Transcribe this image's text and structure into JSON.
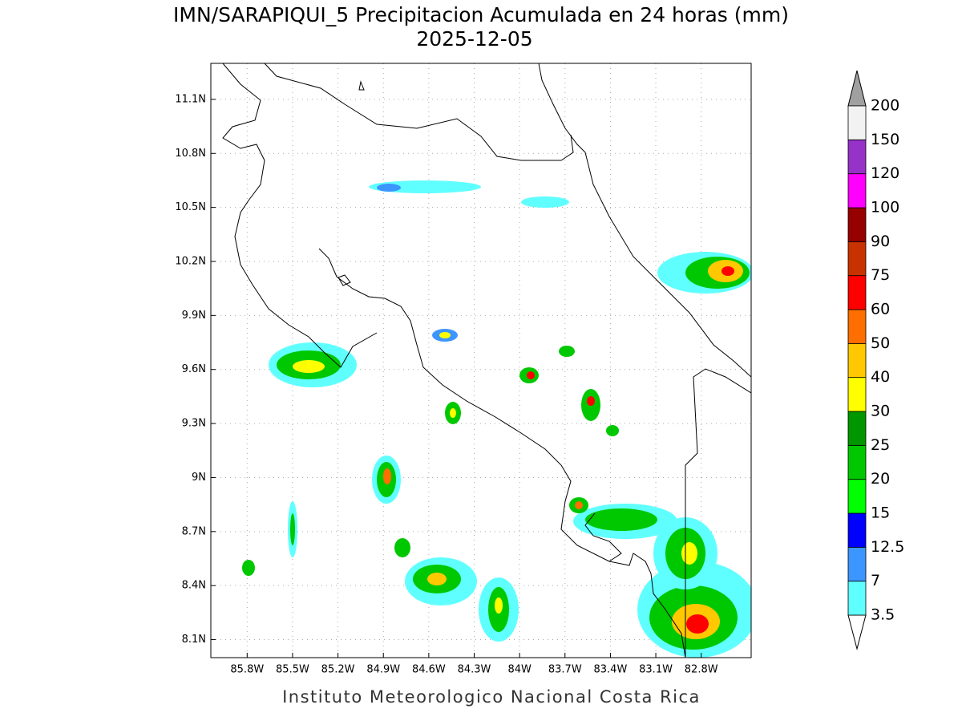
{
  "map": {
    "title": "IMN/SARAPIQUI_5 Precipitacion Acumulada en 24 horas (mm)",
    "subtitle": "2025-12-05",
    "footer": "Instituto Meteorologico Nacional Costa Rica",
    "xlim": [
      -86.04,
      -82.47
    ],
    "ylim": [
      8.0,
      11.3
    ],
    "xticks": [
      {
        "value": -85.8,
        "label": "85.8W"
      },
      {
        "value": -85.5,
        "label": "85.5W"
      },
      {
        "value": -85.2,
        "label": "85.2W"
      },
      {
        "value": -84.9,
        "label": "84.9W"
      },
      {
        "value": -84.6,
        "label": "84.6W"
      },
      {
        "value": -84.3,
        "label": "84.3W"
      },
      {
        "value": -84.0,
        "label": "84W"
      },
      {
        "value": -83.7,
        "label": "83.7W"
      },
      {
        "value": -83.4,
        "label": "83.4W"
      },
      {
        "value": -83.1,
        "label": "83.1W"
      },
      {
        "value": -82.8,
        "label": "82.8W"
      }
    ],
    "yticks": [
      {
        "value": 8.1,
        "label": "8.1N"
      },
      {
        "value": 8.4,
        "label": "8.4N"
      },
      {
        "value": 8.7,
        "label": "8.7N"
      },
      {
        "value": 9.0,
        "label": "9N"
      },
      {
        "value": 9.3,
        "label": "9.3N"
      },
      {
        "value": 9.6,
        "label": "9.6N"
      },
      {
        "value": 9.9,
        "label": "9.9N"
      },
      {
        "value": 10.2,
        "label": "10.2N"
      },
      {
        "value": 10.5,
        "label": "10.5N"
      },
      {
        "value": 10.8,
        "label": "10.8N"
      },
      {
        "value": 11.1,
        "label": "11.1N"
      }
    ],
    "grid": true,
    "colorbar": {
      "levels": [
        3.5,
        7,
        12.5,
        15,
        20,
        25,
        30,
        40,
        50,
        60,
        75,
        90,
        100,
        120,
        150,
        200
      ],
      "colors": [
        "#60ffff",
        "#3c96ff",
        "#0000ff",
        "#00ff00",
        "#00c800",
        "#009600",
        "#ffff00",
        "#ffc800",
        "#ff6e00",
        "#ff0000",
        "#c83200",
        "#960000",
        "#ff00ff",
        "#9632c8",
        "#f2f2f2"
      ],
      "under_color": "#ffffff",
      "over_color": "#a0a0a0"
    }
  }
}
